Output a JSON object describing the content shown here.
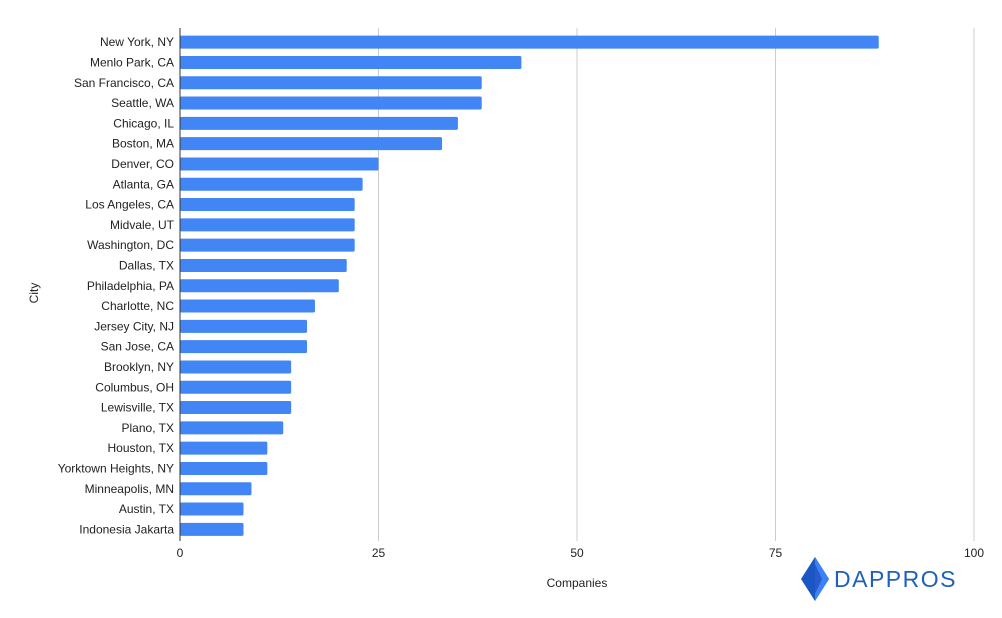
{
  "chart_data": {
    "type": "bar",
    "orientation": "horizontal",
    "categories": [
      "New York, NY",
      "Menlo Park, CA",
      "San Francisco, CA",
      "Seattle, WA",
      "Chicago, IL",
      "Boston, MA",
      "Denver, CO",
      "Atlanta, GA",
      "Los Angeles, CA",
      "Midvale, UT",
      "Washington, DC",
      "Dallas, TX",
      "Philadelphia, PA",
      "Charlotte, NC",
      "Jersey City, NJ",
      "San Jose, CA",
      "Brooklyn, NY",
      "Columbus, OH",
      "Lewisville, TX",
      "Plano, TX",
      "Houston, TX",
      "Yorktown Heights, NY",
      "Minneapolis, MN",
      "Austin, TX",
      "Indonesia Jakarta"
    ],
    "values": [
      88,
      43,
      38,
      38,
      35,
      33,
      25,
      23,
      22,
      22,
      22,
      21,
      20,
      17,
      16,
      16,
      14,
      14,
      14,
      13,
      11,
      11,
      9,
      8,
      8
    ],
    "xlabel": "Companies",
    "ylabel": "City",
    "xlim": [
      0,
      100
    ],
    "xticks": [
      0,
      25,
      50,
      75,
      100
    ],
    "grid": true,
    "bar_color": "#4285f4",
    "grid_color": "#cccccc"
  },
  "logo": {
    "text": "DAPPROS",
    "color": "#1f5fbf",
    "icon": "diamond-logo-icon"
  }
}
